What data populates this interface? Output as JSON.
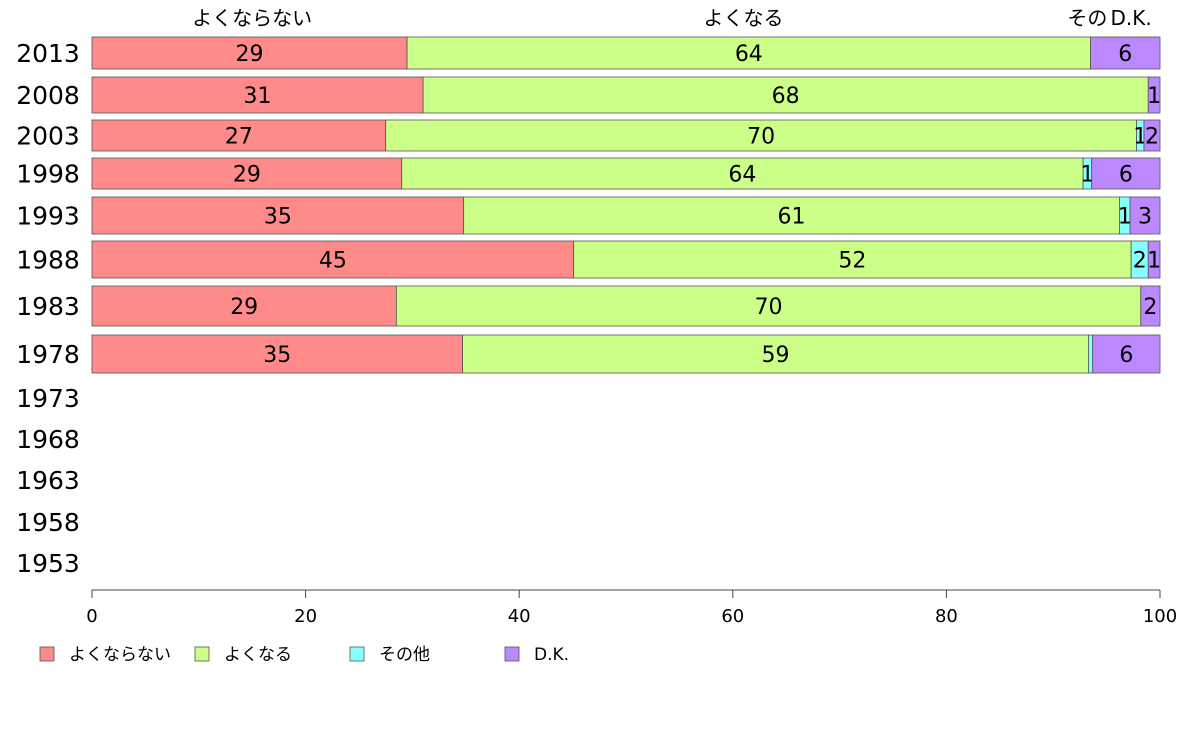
{
  "chart_data": {
    "type": "bar",
    "orientation": "horizontal",
    "stacked": true,
    "categories": [
      "2013",
      "2008",
      "2003",
      "1998",
      "1993",
      "1988",
      "1983",
      "1978",
      "1973",
      "1968",
      "1963",
      "1958",
      "1953"
    ],
    "series": [
      {
        "name": "よくならない",
        "color": "#ff8a8a",
        "values": [
          29.5,
          31,
          27.5,
          29,
          34.8,
          45.1,
          28.5,
          34.7,
          null,
          null,
          null,
          null,
          null
        ],
        "labels": [
          "29",
          "31",
          "27",
          "29",
          "35",
          "45",
          "29",
          "35",
          "",
          "",
          "",
          "",
          ""
        ]
      },
      {
        "name": "よくなる",
        "color": "#ccff88",
        "values": [
          64,
          67.9,
          70.3,
          63.8,
          61.4,
          52.2,
          69.7,
          58.6,
          null,
          null,
          null,
          null,
          null
        ],
        "labels": [
          "64",
          "68",
          "70",
          "64",
          "61",
          "52",
          "70",
          "59",
          "",
          "",
          "",
          "",
          ""
        ]
      },
      {
        "name": "その他",
        "color": "#88ffff",
        "values": [
          0,
          0,
          0.7,
          0.8,
          1,
          1.6,
          0,
          0.4,
          null,
          null,
          null,
          null,
          null
        ],
        "labels": [
          "",
          "",
          "1",
          "1",
          "1",
          "2",
          "",
          "",
          "",
          "",
          "",
          "",
          ""
        ]
      },
      {
        "name": "D.K.",
        "color": "#bb88ff",
        "values": [
          6.5,
          1.1,
          1.5,
          6.4,
          2.8,
          1.1,
          1.8,
          6.3,
          null,
          null,
          null,
          null,
          null
        ],
        "labels": [
          "6",
          "1",
          "2",
          "6",
          "3",
          "1",
          "2",
          "6",
          "",
          "",
          "",
          "",
          ""
        ]
      }
    ],
    "xlim": [
      0,
      100
    ],
    "xticks": [
      "0",
      "20",
      "40",
      "60",
      "80",
      "100"
    ],
    "header_labels": [
      {
        "text": "よくならない",
        "at": 15
      },
      {
        "text": "よくなる",
        "at": 61
      },
      {
        "text": "その",
        "at": 93.2
      },
      {
        "text": "D.K.",
        "at": 97.3
      }
    ],
    "legend": {
      "position": "bottom-left",
      "items": [
        "よくならない",
        "よくなる",
        "その他",
        "D.K."
      ]
    },
    "grid": false
  }
}
